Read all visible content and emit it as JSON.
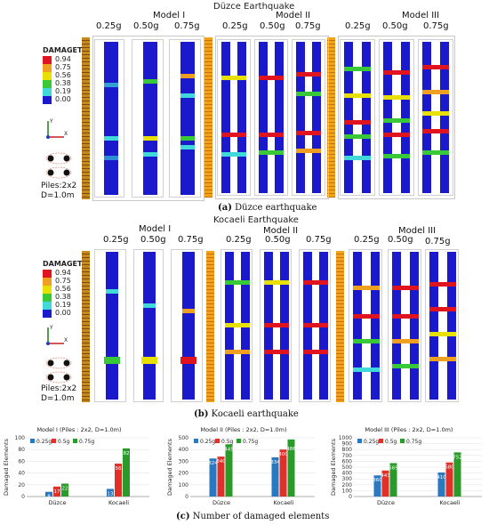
{
  "section_a": {
    "title": "Düzce Earthquake",
    "caption_letter": "(a)",
    "caption_text": "Düzce earthquake",
    "models": [
      "Model I",
      "Model II",
      "Model III"
    ],
    "pga": [
      "0.25g",
      "0.50g",
      "0.75g"
    ]
  },
  "section_b": {
    "title": "Kocaeli Earthquake",
    "caption_letter": "(b)",
    "caption_text": "Kocaeli earthquake",
    "models": [
      "Model I",
      "Model II",
      "Model III"
    ],
    "pga": [
      "0.25g",
      "0.50g",
      "0.75g"
    ]
  },
  "section_c": {
    "caption_letter": "(c)",
    "caption_text": "Number of damaged elements"
  },
  "legend": {
    "title": "DAMAGET",
    "entries": [
      {
        "value": "0.94",
        "color": "#e0141e"
      },
      {
        "value": "0.75",
        "color": "#f0a020"
      },
      {
        "value": "0.56",
        "color": "#e8e000"
      },
      {
        "value": "0.38",
        "color": "#38c838"
      },
      {
        "value": "0.19",
        "color": "#40d8d8"
      },
      {
        "value": "0.00",
        "color": "#1a1acc"
      }
    ]
  },
  "pile_info": {
    "line1": "Piles:2x2",
    "line2": "D=1.0m"
  },
  "axes": {
    "y": "Y",
    "x": "X"
  },
  "colors": {
    "pile_blue": "#1a1acc",
    "bar_025": "#2a78c0",
    "bar_05": "#e0302a",
    "bar_075": "#2a9a2a"
  },
  "chart_data": [
    {
      "type": "bar",
      "title": "Model I (Piles : 2x2, D=1.0m)",
      "ylabel": "Damaged Elements",
      "categories": [
        "Düzce",
        "Kocaeli"
      ],
      "ylim": [
        0,
        100
      ],
      "yticks": [
        0,
        20,
        40,
        60,
        80,
        100
      ],
      "series": [
        {
          "name": "0.25g",
          "values": [
            8,
            13
          ]
        },
        {
          "name": "0.5g",
          "values": [
            17,
            56
          ]
        },
        {
          "name": "0.75g",
          "values": [
            22,
            82
          ]
        }
      ],
      "legend": "top-left"
    },
    {
      "type": "bar",
      "title": "Model II (Piles : 2x2, D=1.0m)",
      "ylabel": "Damaged Elements",
      "categories": [
        "Düzce",
        "Kocaeli"
      ],
      "ylim": [
        0,
        500
      ],
      "yticks": [
        0,
        100,
        200,
        300,
        400,
        500
      ],
      "series": [
        {
          "name": "0.25g",
          "values": [
            324,
            334
          ]
        },
        {
          "name": "0.5g",
          "values": [
            340,
            400
          ]
        },
        {
          "name": "0.75g",
          "values": [
            445,
            486
          ]
        }
      ],
      "legend": "top-left"
    },
    {
      "type": "bar",
      "title": "Model III (Piles : 2x2, D=1.0m)",
      "ylabel": "Damaged Elements",
      "categories": [
        "Düzce",
        "Kocaeli"
      ],
      "ylim": [
        0,
        1000
      ],
      "yticks": [
        0,
        100,
        200,
        300,
        400,
        500,
        600,
        700,
        800,
        900,
        1000
      ],
      "series": [
        {
          "name": "0.25g",
          "values": [
            360,
            410
          ]
        },
        {
          "name": "0.5g",
          "values": [
            443,
            580
          ]
        },
        {
          "name": "0.75g",
          "values": [
            569,
            752
          ]
        }
      ],
      "legend": "top-left"
    }
  ]
}
